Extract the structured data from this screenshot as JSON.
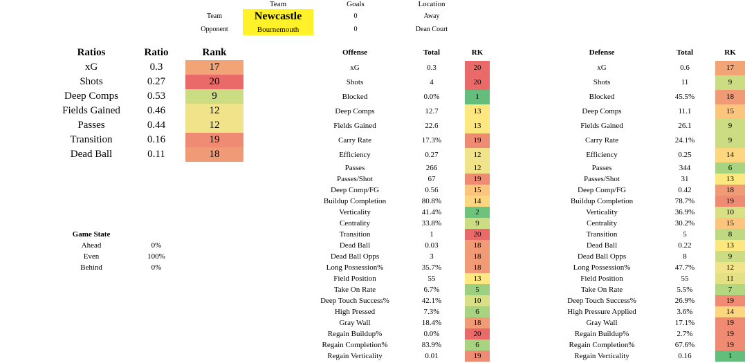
{
  "header": {
    "col_team": "Team",
    "col_goals": "Goals",
    "col_location": "Location",
    "team_label": "Team",
    "opponent_label": "Opponent",
    "team": "Newcastle",
    "opponent": "Bournemouth",
    "team_goals": "0",
    "opponent_goals": "0",
    "team_location": "Away",
    "opponent_location": "Dean Court"
  },
  "ratios": {
    "headers": {
      "name": "Ratios",
      "ratio": "Ratio",
      "rank": "Rank"
    },
    "rows": [
      {
        "name": "xG",
        "ratio": "0.3",
        "rank": "17",
        "color": "#f2a477"
      },
      {
        "name": "Shots",
        "ratio": "0.27",
        "rank": "20",
        "color": "#ea6a6a"
      },
      {
        "name": "Deep Comps",
        "ratio": "0.53",
        "rank": "9",
        "color": "#cbdc83"
      },
      {
        "name": "Fields Gained",
        "ratio": "0.46",
        "rank": "12",
        "color": "#f1e38a"
      },
      {
        "name": "Passes",
        "ratio": "0.44",
        "rank": "12",
        "color": "#f1e38a"
      },
      {
        "name": "Transition",
        "ratio": "0.16",
        "rank": "19",
        "color": "#ef8a73"
      },
      {
        "name": "Dead Ball",
        "ratio": "0.11",
        "rank": "18",
        "color": "#f19a76"
      }
    ]
  },
  "game_state": {
    "title": "Game State",
    "rows": [
      {
        "label": "Ahead",
        "value": "0%"
      },
      {
        "label": "Even",
        "value": "100%"
      },
      {
        "label": "Behind",
        "value": "0%"
      }
    ]
  },
  "offense": {
    "headers": {
      "name": "Offense",
      "total": "Total",
      "rk": "RK"
    },
    "rows": [
      {
        "name": "xG",
        "total": "0.3",
        "rk": "20",
        "color": "#ea6a6a"
      },
      {
        "name": "Shots",
        "total": "4",
        "rk": "20",
        "color": "#ea6a6a"
      },
      {
        "name": "Blocked",
        "total": "0.0%",
        "rk": "1",
        "color": "#63be7b"
      },
      {
        "name": "Deep Comps",
        "total": "12.7",
        "rk": "13",
        "color": "#fde77f"
      },
      {
        "name": "Fields Gained",
        "total": "22.6",
        "rk": "13",
        "color": "#fde77f"
      },
      {
        "name": "Carry Rate",
        "total": "17.3%",
        "rk": "19",
        "color": "#ef8a73"
      },
      {
        "name": "Efficiency",
        "total": "0.27",
        "rk": "12",
        "color": "#f1e38a"
      },
      {
        "name": "Passes",
        "total": "266",
        "rk": "12",
        "color": "#f1e38a"
      },
      {
        "name": "Passes/Shot",
        "total": "67",
        "rk": "19",
        "color": "#ef8a73"
      },
      {
        "name": "Deep Comp/FG",
        "total": "0.56",
        "rk": "15",
        "color": "#fbc57d"
      },
      {
        "name": "Buildup Completion",
        "total": "80.8%",
        "rk": "14",
        "color": "#fdd780"
      },
      {
        "name": "Verticality",
        "total": "41.4%",
        "rk": "2",
        "color": "#6fc27c"
      },
      {
        "name": "Centrality",
        "total": "33.8%",
        "rk": "9",
        "color": "#cbdc83"
      },
      {
        "name": "Transition",
        "total": "1",
        "rk": "20",
        "color": "#ea6a6a"
      },
      {
        "name": "Dead Ball",
        "total": "0.03",
        "rk": "18",
        "color": "#f19a76"
      },
      {
        "name": "Dead Ball Opps",
        "total": "3",
        "rk": "18",
        "color": "#f19a76"
      },
      {
        "name": "Long Possession%",
        "total": "35.7%",
        "rk": "18",
        "color": "#f19a76"
      },
      {
        "name": "Field Position",
        "total": "55",
        "rk": "13",
        "color": "#fde77f"
      },
      {
        "name": "Take On Rate",
        "total": "6.7%",
        "rk": "5",
        "color": "#9ccf7f"
      },
      {
        "name": "Deep Touch Success%",
        "total": "42.1%",
        "rk": "10",
        "color": "#d8df84"
      },
      {
        "name": "High Pressed",
        "total": "7.3%",
        "rk": "6",
        "color": "#a8d380"
      },
      {
        "name": "Gray Wall",
        "total": "18.4%",
        "rk": "18",
        "color": "#f19a76"
      },
      {
        "name": "Regain Buildup%",
        "total": "0.0%",
        "rk": "20",
        "color": "#ea6a6a"
      },
      {
        "name": "Regain Completion%",
        "total": "83.9%",
        "rk": "6",
        "color": "#a8d380"
      },
      {
        "name": "Regain Verticality",
        "total": "0.01",
        "rk": "19",
        "color": "#ef8a73"
      }
    ]
  },
  "defense": {
    "headers": {
      "name": "Defense",
      "total": "Total",
      "rk": "RK"
    },
    "rows": [
      {
        "name": "xG",
        "total": "0.6",
        "rk": "17",
        "color": "#f2a477"
      },
      {
        "name": "Shots",
        "total": "11",
        "rk": "9",
        "color": "#cbdc83"
      },
      {
        "name": "Blocked",
        "total": "45.5%",
        "rk": "18",
        "color": "#f19a76"
      },
      {
        "name": "Deep Comps",
        "total": "11.1",
        "rk": "15",
        "color": "#fbc57d"
      },
      {
        "name": "Fields Gained",
        "total": "26.1",
        "rk": "9",
        "color": "#cbdc83"
      },
      {
        "name": "Carry Rate",
        "total": "24.1%",
        "rk": "9",
        "color": "#cbdc83"
      },
      {
        "name": "Efficiency",
        "total": "0.25",
        "rk": "14",
        "color": "#fdd780"
      },
      {
        "name": "Passes",
        "total": "344",
        "rk": "6",
        "color": "#a8d380"
      },
      {
        "name": "Passes/Shot",
        "total": "31",
        "rk": "13",
        "color": "#fde77f"
      },
      {
        "name": "Deep Comp/FG",
        "total": "0.42",
        "rk": "18",
        "color": "#f19a76"
      },
      {
        "name": "Buildup Completion",
        "total": "78.7%",
        "rk": "19",
        "color": "#ef8a73"
      },
      {
        "name": "Verticality",
        "total": "36.9%",
        "rk": "10",
        "color": "#d8df84"
      },
      {
        "name": "Centrality",
        "total": "30.2%",
        "rk": "15",
        "color": "#fbc57d"
      },
      {
        "name": "Transition",
        "total": "5",
        "rk": "8",
        "color": "#bfd982"
      },
      {
        "name": "Dead Ball",
        "total": "0.22",
        "rk": "13",
        "color": "#fde77f"
      },
      {
        "name": "Dead Ball Opps",
        "total": "8",
        "rk": "9",
        "color": "#cbdc83"
      },
      {
        "name": "Long Possession%",
        "total": "47.7%",
        "rk": "12",
        "color": "#f1e38a"
      },
      {
        "name": "Field Position",
        "total": "55",
        "rk": "11",
        "color": "#e4e185"
      },
      {
        "name": "Take On Rate",
        "total": "5.5%",
        "rk": "7",
        "color": "#b3d681"
      },
      {
        "name": "Deep Touch Success%",
        "total": "26.9%",
        "rk": "19",
        "color": "#ef8a73"
      },
      {
        "name": "High Pressure Applied",
        "total": "3.6%",
        "rk": "14",
        "color": "#fdd780"
      },
      {
        "name": "Gray Wall",
        "total": "17.1%",
        "rk": "19",
        "color": "#ef8a73"
      },
      {
        "name": "Regain Buildup%",
        "total": "2.7%",
        "rk": "19",
        "color": "#ef8a73"
      },
      {
        "name": "Regain Completion%",
        "total": "67.6%",
        "rk": "19",
        "color": "#ef8a73"
      },
      {
        "name": "Regain Verticality",
        "total": "0.16",
        "rk": "1",
        "color": "#63be7b"
      }
    ]
  }
}
